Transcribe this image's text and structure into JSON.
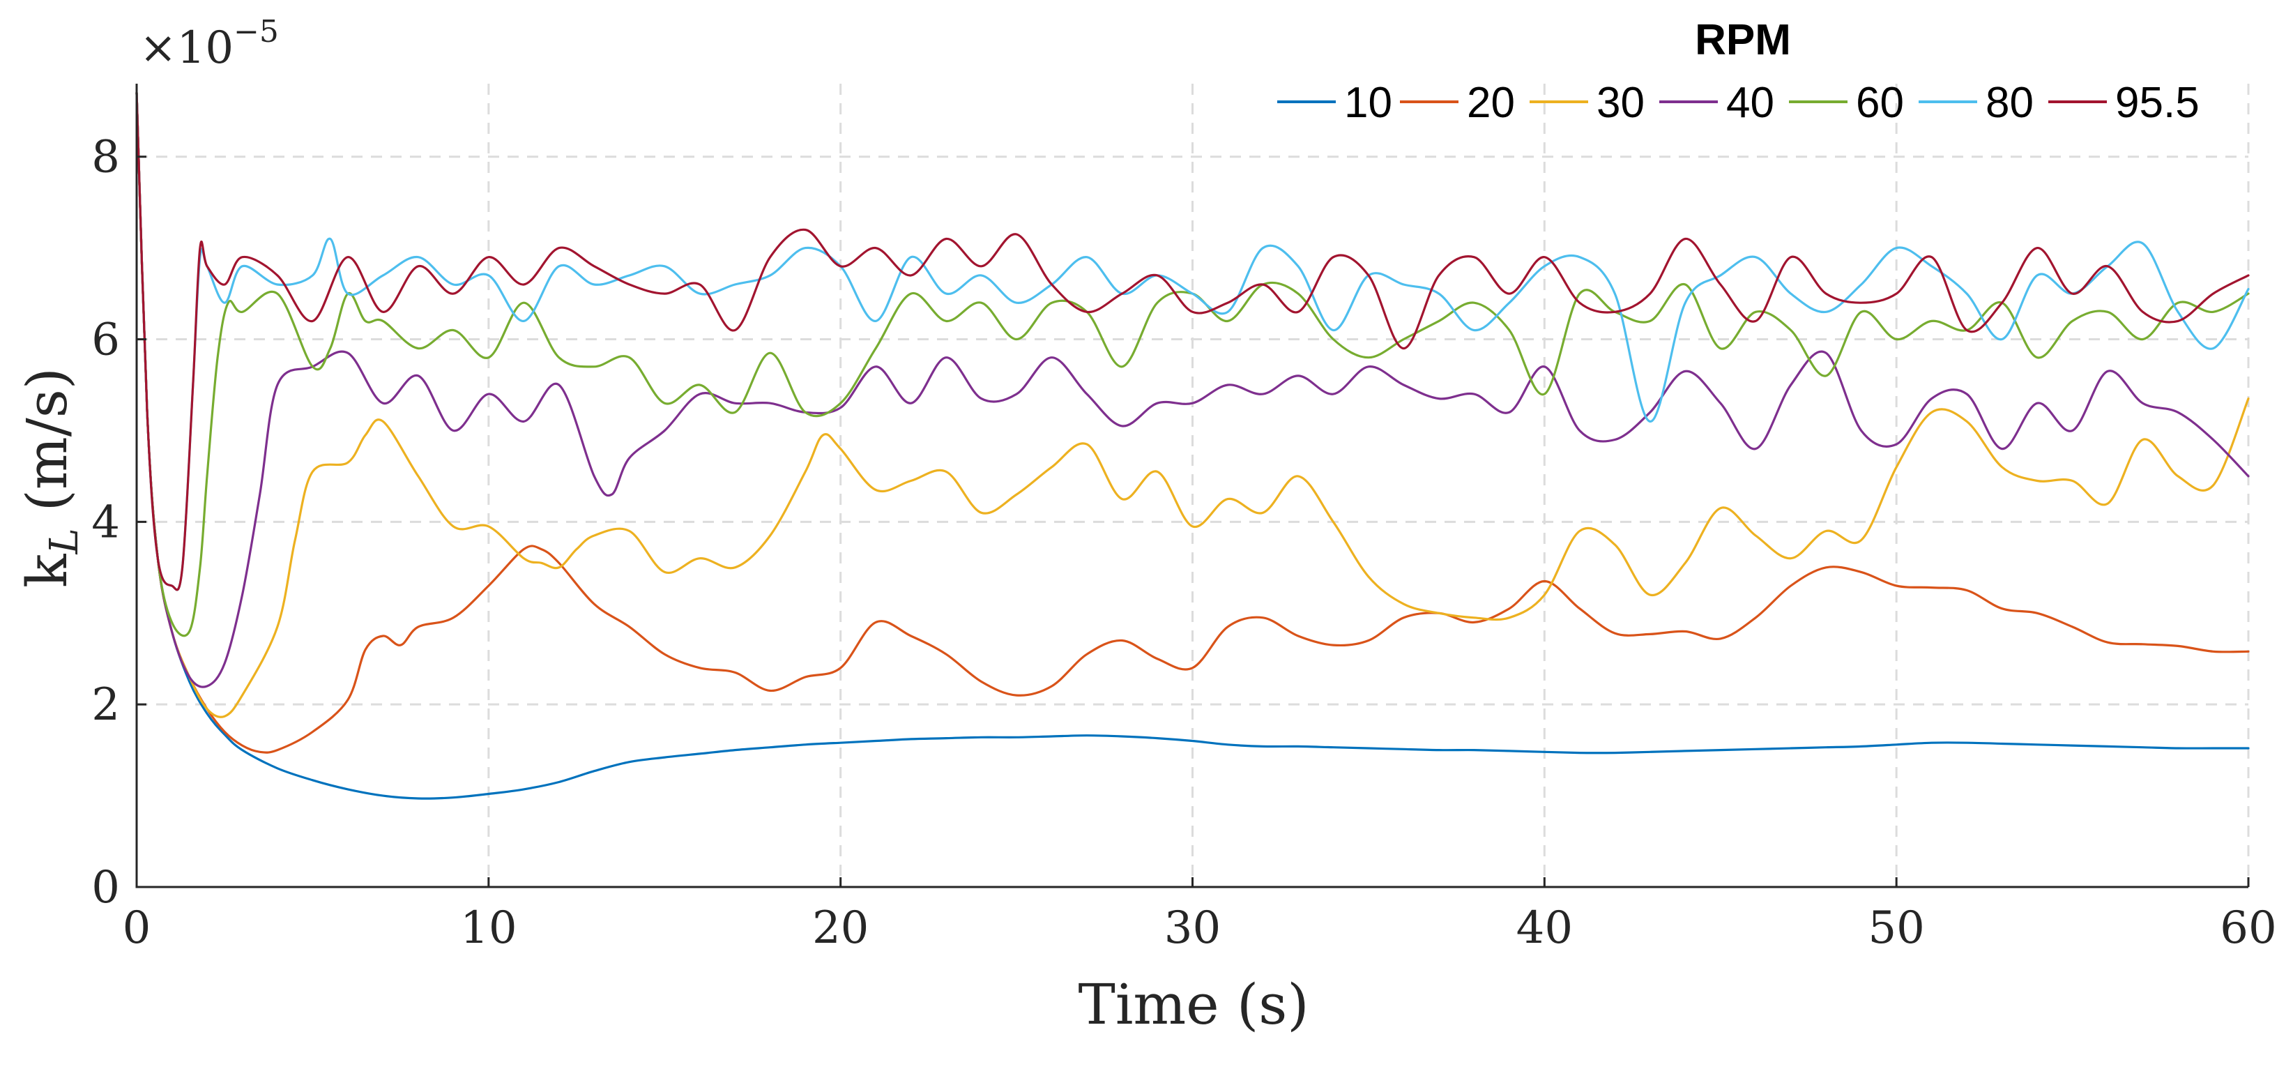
{
  "chart_data": {
    "type": "line",
    "title": "",
    "xlabel": "Time (s)",
    "ylabel": "k",
    "ylabel_subscript": "L",
    "ylabel_units": "(m/s)",
    "y_exponent_base": "×10",
    "y_exponent_power": "−5",
    "xlim": [
      0,
      60
    ],
    "ylim": [
      0,
      8.8
    ],
    "x_ticks": [
      0,
      10,
      20,
      30,
      40,
      50,
      60
    ],
    "y_ticks": [
      0,
      2,
      4,
      6,
      8
    ],
    "grid": true,
    "legend_title": "RPM",
    "legend_position": "top-right",
    "series": [
      {
        "name": "10",
        "color": "#0072BD",
        "x": [
          0,
          0.3,
          0.6,
          1,
          1.5,
          2,
          2.5,
          3,
          4,
          5,
          6,
          7,
          8,
          9,
          10,
          11,
          12,
          13,
          14,
          15,
          16,
          17,
          18,
          19,
          20,
          21,
          22,
          23,
          24,
          25,
          26,
          27,
          28,
          29,
          30,
          31,
          32,
          33,
          34,
          35,
          36,
          37,
          38,
          39,
          40,
          41,
          42,
          43,
          44,
          45,
          46,
          47,
          48,
          49,
          50,
          51,
          52,
          53,
          54,
          55,
          56,
          57,
          58,
          59,
          60
        ],
        "values": [
          8.7,
          5.2,
          3.6,
          2.8,
          2.25,
          1.9,
          1.67,
          1.5,
          1.3,
          1.17,
          1.07,
          1.0,
          0.97,
          0.98,
          1.02,
          1.07,
          1.15,
          1.27,
          1.37,
          1.42,
          1.46,
          1.5,
          1.53,
          1.56,
          1.58,
          1.6,
          1.62,
          1.63,
          1.64,
          1.64,
          1.65,
          1.66,
          1.65,
          1.63,
          1.6,
          1.56,
          1.54,
          1.54,
          1.53,
          1.52,
          1.51,
          1.5,
          1.5,
          1.49,
          1.48,
          1.47,
          1.47,
          1.48,
          1.49,
          1.5,
          1.51,
          1.52,
          1.53,
          1.54,
          1.56,
          1.58,
          1.58,
          1.57,
          1.56,
          1.55,
          1.54,
          1.53,
          1.52,
          1.52,
          1.52
        ]
      },
      {
        "name": "20",
        "color": "#D95319",
        "x": [
          0,
          0.3,
          0.6,
          1,
          1.5,
          2,
          2.5,
          3,
          3.5,
          4,
          5,
          6,
          6.5,
          7,
          7.5,
          8,
          9,
          10,
          11,
          11.5,
          12,
          13,
          14,
          15,
          16,
          17,
          18,
          19,
          20,
          21,
          22,
          23,
          24,
          25,
          26,
          27,
          28,
          29,
          30,
          31,
          32,
          33,
          34,
          35,
          36,
          37,
          38,
          39,
          40,
          41,
          42,
          43,
          44,
          45,
          46,
          47,
          48,
          49,
          50,
          51,
          52,
          53,
          54,
          55,
          56,
          57,
          58,
          59,
          60
        ],
        "values": [
          8.7,
          5.2,
          3.6,
          2.8,
          2.3,
          1.95,
          1.7,
          1.55,
          1.48,
          1.5,
          1.7,
          2.05,
          2.6,
          2.75,
          2.65,
          2.85,
          2.95,
          3.3,
          3.7,
          3.7,
          3.55,
          3.1,
          2.85,
          2.55,
          2.4,
          2.35,
          2.15,
          2.3,
          2.4,
          2.9,
          2.75,
          2.55,
          2.25,
          2.1,
          2.2,
          2.55,
          2.7,
          2.5,
          2.4,
          2.85,
          2.95,
          2.75,
          2.65,
          2.7,
          2.95,
          3.0,
          2.9,
          3.05,
          3.35,
          3.05,
          2.78,
          2.77,
          2.8,
          2.72,
          2.95,
          3.3,
          3.5,
          3.45,
          3.3,
          3.28,
          3.25,
          3.05,
          3.0,
          2.85,
          2.68,
          2.66,
          2.64,
          2.58,
          2.58
        ]
      },
      {
        "name": "30",
        "color": "#EDB120",
        "x": [
          0,
          0.3,
          0.6,
          1,
          1.5,
          2,
          2.5,
          3,
          4,
          4.5,
          5,
          6,
          6.5,
          7,
          8,
          9,
          10,
          11,
          11.5,
          12,
          12.5,
          13,
          14,
          15,
          16,
          17,
          18,
          19,
          19.5,
          20,
          21,
          22,
          23,
          24,
          25,
          26,
          27,
          28,
          29,
          30,
          31,
          32,
          33,
          34,
          35,
          36,
          37,
          38,
          39,
          40,
          41,
          42,
          43,
          44,
          45,
          46,
          47,
          48,
          49,
          50,
          51,
          52,
          53,
          54,
          55,
          56,
          57,
          58,
          59,
          60
        ],
        "values": [
          8.7,
          5.2,
          3.6,
          2.8,
          2.3,
          1.95,
          1.87,
          2.1,
          2.85,
          3.8,
          4.55,
          4.65,
          4.95,
          5.1,
          4.5,
          3.95,
          3.95,
          3.6,
          3.55,
          3.5,
          3.7,
          3.85,
          3.9,
          3.45,
          3.6,
          3.5,
          3.85,
          4.55,
          4.95,
          4.8,
          4.35,
          4.45,
          4.55,
          4.1,
          4.3,
          4.6,
          4.85,
          4.25,
          4.55,
          3.95,
          4.25,
          4.1,
          4.5,
          4.0,
          3.4,
          3.1,
          3.0,
          2.95,
          2.95,
          3.2,
          3.9,
          3.75,
          3.2,
          3.55,
          4.15,
          3.85,
          3.6,
          3.9,
          3.8,
          4.6,
          5.2,
          5.1,
          4.6,
          4.45,
          4.45,
          4.2,
          4.9,
          4.5,
          4.4,
          5.35
        ]
      },
      {
        "name": "40",
        "color": "#7E2F8E",
        "x": [
          0,
          0.3,
          0.6,
          1,
          1.5,
          2,
          2.5,
          3,
          3.5,
          4,
          5,
          6,
          7,
          8,
          9,
          10,
          11,
          12,
          13,
          13.5,
          14,
          15,
          16,
          17,
          18,
          19,
          20,
          21,
          22,
          23,
          24,
          25,
          26,
          27,
          28,
          29,
          30,
          31,
          32,
          33,
          34,
          35,
          36,
          37,
          38,
          39,
          40,
          41,
          42,
          43,
          44,
          45,
          46,
          47,
          48,
          49,
          50,
          51,
          52,
          53,
          54,
          55,
          56,
          57,
          58,
          59,
          60
        ],
        "values": [
          8.7,
          5.2,
          3.6,
          2.8,
          2.3,
          2.2,
          2.45,
          3.2,
          4.3,
          5.5,
          5.7,
          5.85,
          5.3,
          5.6,
          5.0,
          5.4,
          5.1,
          5.5,
          4.5,
          4.3,
          4.7,
          5.0,
          5.4,
          5.3,
          5.3,
          5.2,
          5.25,
          5.7,
          5.3,
          5.8,
          5.35,
          5.4,
          5.8,
          5.4,
          5.05,
          5.3,
          5.3,
          5.5,
          5.4,
          5.6,
          5.4,
          5.7,
          5.5,
          5.35,
          5.4,
          5.2,
          5.7,
          5.0,
          4.9,
          5.2,
          5.65,
          5.3,
          4.8,
          5.5,
          5.85,
          5.0,
          4.85,
          5.35,
          5.4,
          4.8,
          5.3,
          5.0,
          5.65,
          5.3,
          5.2,
          4.9,
          4.5
        ]
      },
      {
        "name": "60",
        "color": "#77AC30",
        "x": [
          0,
          0.3,
          0.6,
          1,
          1.5,
          1.8,
          2,
          2.3,
          2.6,
          3,
          4,
          5,
          5.5,
          6,
          6.5,
          7,
          8,
          9,
          10,
          11,
          12,
          13,
          14,
          15,
          16,
          17,
          18,
          19,
          20,
          21,
          22,
          23,
          24,
          25,
          26,
          27,
          28,
          29,
          30,
          31,
          32,
          33,
          34,
          35,
          36,
          37,
          38,
          39,
          40,
          41,
          42,
          43,
          44,
          45,
          46,
          47,
          48,
          49,
          50,
          51,
          52,
          53,
          54,
          55,
          56,
          57,
          58,
          59,
          60
        ],
        "values": [
          8.7,
          5.2,
          3.6,
          2.9,
          2.8,
          3.5,
          4.5,
          5.8,
          6.4,
          6.3,
          6.5,
          5.7,
          5.9,
          6.5,
          6.2,
          6.2,
          5.9,
          6.1,
          5.8,
          6.4,
          5.8,
          5.7,
          5.8,
          5.3,
          5.5,
          5.2,
          5.85,
          5.2,
          5.3,
          5.9,
          6.5,
          6.2,
          6.4,
          6.0,
          6.4,
          6.3,
          5.7,
          6.4,
          6.5,
          6.2,
          6.6,
          6.5,
          6.0,
          5.8,
          6.0,
          6.2,
          6.4,
          6.1,
          5.4,
          6.5,
          6.3,
          6.2,
          6.6,
          5.9,
          6.3,
          6.1,
          5.6,
          6.3,
          6.0,
          6.2,
          6.1,
          6.4,
          5.8,
          6.2,
          6.3,
          6.0,
          6.4,
          6.3,
          6.5
        ]
      },
      {
        "name": "80",
        "color": "#4DBEEE",
        "x": [
          0,
          0.3,
          0.6,
          1,
          1.3,
          1.6,
          1.8,
          2,
          2.5,
          3,
          4,
          5,
          5.5,
          6,
          7,
          8,
          9,
          10,
          11,
          12,
          13,
          14,
          15,
          16,
          17,
          18,
          19,
          20,
          21,
          22,
          23,
          24,
          25,
          26,
          27,
          28,
          29,
          30,
          31,
          32,
          33,
          34,
          35,
          36,
          37,
          38,
          39,
          40,
          41,
          42,
          43,
          44,
          45,
          46,
          47,
          48,
          49,
          50,
          51,
          52,
          53,
          54,
          55,
          56,
          57,
          58,
          59,
          60
        ],
        "values": [
          8.7,
          5.2,
          3.6,
          3.3,
          3.5,
          5.5,
          6.9,
          6.8,
          6.4,
          6.8,
          6.6,
          6.7,
          7.1,
          6.5,
          6.7,
          6.9,
          6.6,
          6.7,
          6.2,
          6.8,
          6.6,
          6.7,
          6.8,
          6.5,
          6.6,
          6.7,
          7.0,
          6.8,
          6.2,
          6.9,
          6.5,
          6.7,
          6.4,
          6.6,
          6.9,
          6.5,
          6.7,
          6.5,
          6.3,
          7.0,
          6.8,
          6.1,
          6.7,
          6.6,
          6.5,
          6.1,
          6.4,
          6.8,
          6.9,
          6.5,
          5.1,
          6.4,
          6.7,
          6.9,
          6.5,
          6.3,
          6.6,
          7.0,
          6.8,
          6.5,
          6.0,
          6.7,
          6.5,
          6.8,
          7.05,
          6.3,
          5.9,
          6.55
        ]
      },
      {
        "name": "95.5",
        "color": "#A2142F",
        "x": [
          0,
          0.3,
          0.6,
          1,
          1.3,
          1.6,
          1.8,
          2,
          2.5,
          3,
          4,
          5,
          6,
          7,
          8,
          9,
          10,
          11,
          12,
          13,
          14,
          15,
          16,
          17,
          18,
          19,
          20,
          21,
          22,
          23,
          24,
          25,
          26,
          27,
          28,
          29,
          30,
          31,
          32,
          33,
          34,
          35,
          36,
          37,
          38,
          39,
          40,
          41,
          42,
          43,
          44,
          45,
          46,
          47,
          48,
          49,
          50,
          51,
          52,
          53,
          54,
          55,
          56,
          57,
          58,
          59,
          60
        ],
        "values": [
          8.7,
          5.2,
          3.6,
          3.3,
          3.5,
          5.5,
          7.0,
          6.8,
          6.6,
          6.9,
          6.7,
          6.2,
          6.9,
          6.3,
          6.8,
          6.5,
          6.9,
          6.6,
          7.0,
          6.8,
          6.6,
          6.5,
          6.6,
          6.1,
          6.9,
          7.2,
          6.8,
          7.0,
          6.7,
          7.1,
          6.8,
          7.15,
          6.6,
          6.3,
          6.5,
          6.7,
          6.3,
          6.4,
          6.6,
          6.3,
          6.9,
          6.7,
          5.9,
          6.7,
          6.9,
          6.5,
          6.9,
          6.4,
          6.3,
          6.5,
          7.1,
          6.6,
          6.2,
          6.9,
          6.5,
          6.4,
          6.5,
          6.9,
          6.1,
          6.4,
          7.0,
          6.5,
          6.8,
          6.3,
          6.2,
          6.5,
          6.7
        ]
      }
    ]
  }
}
